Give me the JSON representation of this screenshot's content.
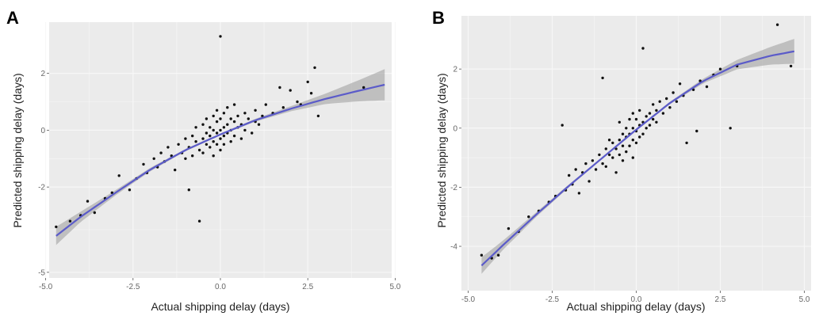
{
  "chart_data": [
    {
      "panel_label": "A",
      "type": "scatter",
      "xlabel": "Actual shipping delay (days)",
      "ylabel": "Predicted shipping delay (days)",
      "xlim": [
        -4.9,
        4.9
      ],
      "ylim": [
        -5.2,
        3.8
      ],
      "xticks": [
        -5.0,
        -2.5,
        0.0,
        2.5,
        5.0
      ],
      "xtick_labels": [
        "-5.0",
        "-2.5",
        "0.0",
        "2.5",
        "5.0"
      ],
      "yticks": [
        -5,
        -2,
        0,
        2
      ],
      "ytick_labels": [
        "-5",
        "-2",
        "0",
        "2"
      ],
      "grid": true,
      "fit_curve": [
        [
          -4.7,
          -3.72
        ],
        [
          -4.0,
          -3.05
        ],
        [
          -3.0,
          -2.2
        ],
        [
          -2.0,
          -1.38
        ],
        [
          -1.0,
          -0.7
        ],
        [
          0.0,
          -0.15
        ],
        [
          1.0,
          0.35
        ],
        [
          2.0,
          0.75
        ],
        [
          3.0,
          1.1
        ],
        [
          4.0,
          1.4
        ],
        [
          4.7,
          1.6
        ]
      ],
      "ci_halfwidth": [
        [
          -4.7,
          0.32
        ],
        [
          -4.0,
          0.18
        ],
        [
          -3.0,
          0.09
        ],
        [
          -2.0,
          0.06
        ],
        [
          -1.0,
          0.04
        ],
        [
          0.0,
          0.03
        ],
        [
          1.0,
          0.05
        ],
        [
          2.0,
          0.09
        ],
        [
          3.0,
          0.18
        ],
        [
          4.0,
          0.38
        ],
        [
          4.7,
          0.55
        ]
      ],
      "points": [
        [
          -4.7,
          -3.4
        ],
        [
          -4.3,
          -3.2
        ],
        [
          -4.0,
          -3.0
        ],
        [
          -3.8,
          -2.5
        ],
        [
          -3.6,
          -2.9
        ],
        [
          -3.3,
          -2.4
        ],
        [
          -3.1,
          -2.2
        ],
        [
          -2.9,
          -1.6
        ],
        [
          -2.6,
          -2.1
        ],
        [
          -2.4,
          -1.7
        ],
        [
          -2.2,
          -1.2
        ],
        [
          -2.1,
          -1.5
        ],
        [
          -1.9,
          -1.0
        ],
        [
          -1.8,
          -1.3
        ],
        [
          -1.7,
          -0.8
        ],
        [
          -1.6,
          -1.1
        ],
        [
          -1.5,
          -0.6
        ],
        [
          -1.4,
          -0.9
        ],
        [
          -1.3,
          -1.4
        ],
        [
          -1.2,
          -0.5
        ],
        [
          -1.1,
          -0.8
        ],
        [
          -1.0,
          -0.3
        ],
        [
          -1.0,
          -1.0
        ],
        [
          -0.9,
          -0.6
        ],
        [
          -0.9,
          -2.1
        ],
        [
          -0.8,
          -0.2
        ],
        [
          -0.8,
          -0.9
        ],
        [
          -0.7,
          -0.4
        ],
        [
          -0.7,
          0.1
        ],
        [
          -0.6,
          -0.7
        ],
        [
          -0.6,
          -3.2
        ],
        [
          -0.5,
          -0.3
        ],
        [
          -0.5,
          0.2
        ],
        [
          -0.5,
          -0.8
        ],
        [
          -0.4,
          -0.1
        ],
        [
          -0.4,
          -0.5
        ],
        [
          -0.4,
          0.4
        ],
        [
          -0.3,
          -0.2
        ],
        [
          -0.3,
          -0.6
        ],
        [
          -0.3,
          0.1
        ],
        [
          -0.2,
          0.0
        ],
        [
          -0.2,
          -0.4
        ],
        [
          -0.2,
          0.5
        ],
        [
          -0.2,
          -0.9
        ],
        [
          -0.1,
          -0.1
        ],
        [
          -0.1,
          0.3
        ],
        [
          -0.1,
          -0.5
        ],
        [
          -0.1,
          0.7
        ],
        [
          0.0,
          0.0
        ],
        [
          0.0,
          -0.3
        ],
        [
          0.0,
          0.4
        ],
        [
          0.0,
          -0.7
        ],
        [
          0.0,
          3.3
        ],
        [
          0.1,
          0.1
        ],
        [
          0.1,
          -0.2
        ],
        [
          0.1,
          0.6
        ],
        [
          0.1,
          -0.5
        ],
        [
          0.2,
          0.2
        ],
        [
          0.2,
          -0.1
        ],
        [
          0.2,
          0.8
        ],
        [
          0.3,
          0.0
        ],
        [
          0.3,
          0.4
        ],
        [
          0.3,
          -0.4
        ],
        [
          0.4,
          0.3
        ],
        [
          0.4,
          -0.2
        ],
        [
          0.4,
          0.9
        ],
        [
          0.5,
          0.1
        ],
        [
          0.5,
          0.5
        ],
        [
          0.6,
          0.2
        ],
        [
          0.6,
          -0.3
        ],
        [
          0.7,
          0.6
        ],
        [
          0.7,
          0.0
        ],
        [
          0.8,
          0.4
        ],
        [
          0.9,
          -0.1
        ],
        [
          1.0,
          0.3
        ],
        [
          1.0,
          0.7
        ],
        [
          1.1,
          0.2
        ],
        [
          1.2,
          0.5
        ],
        [
          1.3,
          0.9
        ],
        [
          1.5,
          0.6
        ],
        [
          1.7,
          1.5
        ],
        [
          1.8,
          0.8
        ],
        [
          2.0,
          1.4
        ],
        [
          2.2,
          1.0
        ],
        [
          2.3,
          0.9
        ],
        [
          2.5,
          1.7
        ],
        [
          2.6,
          1.3
        ],
        [
          2.7,
          2.2
        ],
        [
          2.8,
          0.5
        ],
        [
          4.1,
          1.5
        ]
      ]
    },
    {
      "panel_label": "B",
      "type": "scatter",
      "xlabel": "Actual shipping delay (days)",
      "ylabel": "Predicted shipping delay (days)",
      "xlim": [
        -5.2,
        5.2
      ],
      "ylim": [
        -5.5,
        3.8
      ],
      "xticks": [
        -5.0,
        -2.5,
        0.0,
        2.5,
        5.0
      ],
      "xtick_labels": [
        "-5.0",
        "-2.5",
        "0.0",
        "2.5",
        "5.0"
      ],
      "yticks": [
        -4,
        -2,
        0,
        2
      ],
      "ytick_labels": [
        "-4",
        "-2",
        "0",
        "2"
      ],
      "grid": true,
      "fit_curve": [
        [
          -4.6,
          -4.65
        ],
        [
          -4.0,
          -4.0
        ],
        [
          -3.0,
          -2.95
        ],
        [
          -2.0,
          -1.95
        ],
        [
          -1.0,
          -1.0
        ],
        [
          0.0,
          -0.05
        ],
        [
          1.0,
          0.85
        ],
        [
          2.0,
          1.6
        ],
        [
          3.0,
          2.15
        ],
        [
          4.0,
          2.45
        ],
        [
          4.7,
          2.6
        ]
      ],
      "ci_halfwidth": [
        [
          -4.6,
          0.28
        ],
        [
          -4.0,
          0.16
        ],
        [
          -3.0,
          0.08
        ],
        [
          -2.0,
          0.05
        ],
        [
          -1.0,
          0.03
        ],
        [
          0.0,
          0.03
        ],
        [
          1.0,
          0.04
        ],
        [
          2.0,
          0.08
        ],
        [
          3.0,
          0.16
        ],
        [
          4.0,
          0.3
        ],
        [
          4.7,
          0.42
        ]
      ],
      "points": [
        [
          -4.6,
          -4.3
        ],
        [
          -4.3,
          -4.4
        ],
        [
          -4.1,
          -4.3
        ],
        [
          -3.8,
          -3.4
        ],
        [
          -3.5,
          -3.5
        ],
        [
          -3.2,
          -3.0
        ],
        [
          -2.9,
          -2.8
        ],
        [
          -2.6,
          -2.5
        ],
        [
          -2.4,
          -2.3
        ],
        [
          -2.2,
          0.1
        ],
        [
          -2.1,
          -2.1
        ],
        [
          -2.0,
          -1.6
        ],
        [
          -1.9,
          -1.9
        ],
        [
          -1.8,
          -1.4
        ],
        [
          -1.7,
          -2.2
        ],
        [
          -1.6,
          -1.5
        ],
        [
          -1.5,
          -1.2
        ],
        [
          -1.4,
          -1.8
        ],
        [
          -1.3,
          -1.1
        ],
        [
          -1.2,
          -1.4
        ],
        [
          -1.1,
          -0.9
        ],
        [
          -1.0,
          -1.2
        ],
        [
          -1.0,
          1.7
        ],
        [
          -0.9,
          -0.7
        ],
        [
          -0.9,
          -1.3
        ],
        [
          -0.8,
          -0.9
        ],
        [
          -0.8,
          -0.4
        ],
        [
          -0.7,
          -1.0
        ],
        [
          -0.7,
          -0.5
        ],
        [
          -0.6,
          -0.7
        ],
        [
          -0.6,
          -1.5
        ],
        [
          -0.5,
          -0.4
        ],
        [
          -0.5,
          -0.9
        ],
        [
          -0.5,
          0.2
        ],
        [
          -0.4,
          -0.6
        ],
        [
          -0.4,
          -0.2
        ],
        [
          -0.4,
          -1.1
        ],
        [
          -0.3,
          -0.3
        ],
        [
          -0.3,
          0.0
        ],
        [
          -0.3,
          -0.8
        ],
        [
          -0.2,
          -0.2
        ],
        [
          -0.2,
          0.3
        ],
        [
          -0.2,
          -0.6
        ],
        [
          -0.1,
          0.0
        ],
        [
          -0.1,
          -0.4
        ],
        [
          -0.1,
          0.5
        ],
        [
          -0.1,
          -1.0
        ],
        [
          0.0,
          -0.1
        ],
        [
          0.0,
          0.3
        ],
        [
          0.0,
          -0.5
        ],
        [
          0.1,
          0.1
        ],
        [
          0.1,
          -0.3
        ],
        [
          0.1,
          0.6
        ],
        [
          0.2,
          0.2
        ],
        [
          0.2,
          -0.2
        ],
        [
          0.2,
          2.7
        ],
        [
          0.3,
          0.4
        ],
        [
          0.3,
          0.0
        ],
        [
          0.4,
          0.5
        ],
        [
          0.4,
          0.1
        ],
        [
          0.5,
          0.3
        ],
        [
          0.5,
          0.8
        ],
        [
          0.6,
          0.6
        ],
        [
          0.6,
          0.2
        ],
        [
          0.7,
          0.9
        ],
        [
          0.8,
          0.5
        ],
        [
          0.9,
          1.0
        ],
        [
          1.0,
          0.7
        ],
        [
          1.1,
          1.2
        ],
        [
          1.2,
          0.9
        ],
        [
          1.3,
          1.5
        ],
        [
          1.4,
          1.1
        ],
        [
          1.5,
          -0.5
        ],
        [
          1.7,
          1.3
        ],
        [
          1.8,
          -0.1
        ],
        [
          1.9,
          1.6
        ],
        [
          2.1,
          1.4
        ],
        [
          2.3,
          1.8
        ],
        [
          2.5,
          2.0
        ],
        [
          2.8,
          0.0
        ],
        [
          3.0,
          2.1
        ],
        [
          4.2,
          3.5
        ],
        [
          4.6,
          2.1
        ]
      ]
    }
  ],
  "colors": {
    "panel_background": "#ebebeb",
    "grid": "#f7f7f7",
    "points": "#111111",
    "fit_line": "#5b5bc9",
    "confidence_band": "#9a9a9a"
  }
}
